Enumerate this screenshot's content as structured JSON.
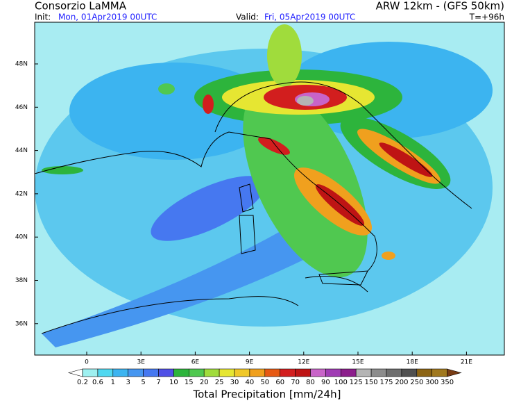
{
  "header": {
    "title": "Consorzio LaMMA",
    "model": "ARW 12km - (GFS 50km)",
    "init_label": "Init:",
    "init_time": "Mon, 01Apr2019 00UTC",
    "valid_label": "Valid:",
    "valid_time": "Fri, 05Apr2019 00UTC",
    "lead_time": "T=+96h"
  },
  "map": {
    "lat_labels": [
      "48N",
      "46N",
      "44N",
      "42N",
      "40N",
      "38N",
      "36N"
    ],
    "lon_labels": [
      "0",
      "3E",
      "6E",
      "9E",
      "12E",
      "15E",
      "18E",
      "21E"
    ]
  },
  "colorbar": {
    "levels": [
      "0.2",
      "0.6",
      "1",
      "3",
      "5",
      "7",
      "10",
      "15",
      "20",
      "25",
      "30",
      "40",
      "50",
      "60",
      "70",
      "80",
      "90",
      "100",
      "125",
      "150",
      "175",
      "200",
      "250",
      "300",
      "350"
    ],
    "colors": [
      "#ffffff",
      "#9ef0f0",
      "#50d8f0",
      "#3cb4f0",
      "#4696f0",
      "#4678f0",
      "#5050e6",
      "#2db43c",
      "#50c850",
      "#a0dc3c",
      "#e6e632",
      "#f0c828",
      "#f0a01e",
      "#e65a14",
      "#d21e1e",
      "#be1414",
      "#c864c8",
      "#a03cb4",
      "#8c1e8c",
      "#b4b4b4",
      "#8c8c8c",
      "#6e6e6e",
      "#505050",
      "#8c6414",
      "#a0781e",
      "#783c14"
    ],
    "label": "Total Precipitation [mm/24h]"
  }
}
